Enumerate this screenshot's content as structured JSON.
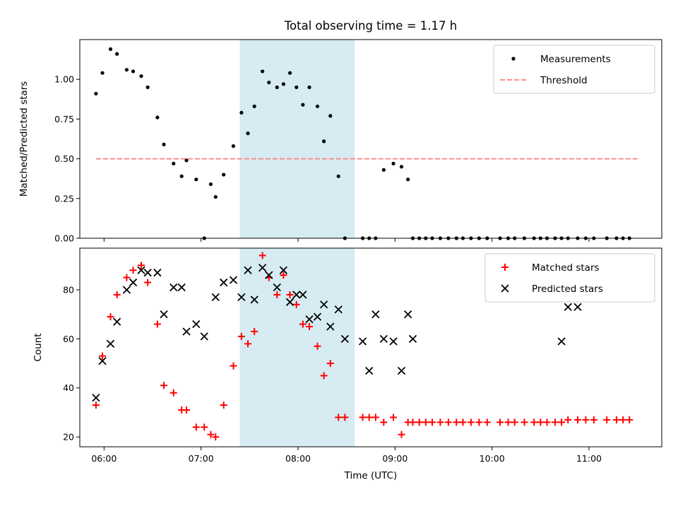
{
  "title": "Total observing time = 1.17 h",
  "colors": {
    "measurement": "#000000",
    "threshold": "#ff7f7f",
    "matched": "#ff0000",
    "predicted": "#000000",
    "shade": "#add8e6"
  },
  "chart_data": [
    {
      "type": "scatter",
      "ylabel": "Matched/Predicted stars",
      "xlabel": "",
      "xlim": [
        "05:45",
        "11:45"
      ],
      "ylim": [
        0,
        1.25
      ],
      "yticks": [
        "0.00",
        "0.25",
        "0.50",
        "0.75",
        "1.00"
      ],
      "shaded_region": [
        "07:24",
        "08:35"
      ],
      "legend": {
        "placement": "top-right",
        "entries": [
          "Measurements",
          "Threshold"
        ]
      },
      "threshold": {
        "name": "Threshold",
        "y": 0.5,
        "x": [
          "05:55",
          "11:30"
        ]
      },
      "series": [
        {
          "name": "Measurements",
          "x": [
            "05:55",
            "05:59",
            "06:04",
            "06:08",
            "06:14",
            "06:18",
            "06:23",
            "06:27",
            "06:33",
            "06:37",
            "06:43",
            "06:48",
            "06:51",
            "06:57",
            "07:02",
            "07:06",
            "07:09",
            "07:14",
            "07:20",
            "07:25",
            "07:29",
            "07:33",
            "07:38",
            "07:42",
            "07:47",
            "07:51",
            "07:55",
            "07:59",
            "08:03",
            "08:07",
            "08:12",
            "08:16",
            "08:20",
            "08:25",
            "08:29",
            "08:40",
            "08:44",
            "08:48",
            "08:53",
            "08:59",
            "09:04",
            "09:08",
            "09:11",
            "09:15",
            "09:19",
            "09:23",
            "09:28",
            "09:33",
            "09:38",
            "09:42",
            "09:47",
            "09:52",
            "09:57",
            "10:05",
            "10:10",
            "10:14",
            "10:20",
            "10:26",
            "10:30",
            "10:34",
            "10:39",
            "10:43",
            "10:47",
            "10:53",
            "10:58",
            "11:03",
            "11:11",
            "11:17",
            "11:21",
            "11:25"
          ],
          "y": [
            0.91,
            1.04,
            1.19,
            1.16,
            1.06,
            1.05,
            1.02,
            0.95,
            0.76,
            0.59,
            0.47,
            0.39,
            0.49,
            0.37,
            0.0,
            0.34,
            0.26,
            0.4,
            0.58,
            0.79,
            0.66,
            0.83,
            1.05,
            0.98,
            0.95,
            0.97,
            1.04,
            0.95,
            0.84,
            0.95,
            0.83,
            0.61,
            0.77,
            0.39,
            0.0,
            0.0,
            0.0,
            0.0,
            0.43,
            0.47,
            0.45,
            0.37,
            0.0,
            0.0,
            0.0,
            0.0,
            0.0,
            0.0,
            0.0,
            0.0,
            0.0,
            0.0,
            0.0,
            0.0,
            0.0,
            0.0,
            0.0,
            0.0,
            0.0,
            0.0,
            0.0,
            0.0,
            0.0,
            0.0,
            0.0,
            0.0,
            0.0,
            0.0,
            0.0,
            0.0
          ]
        }
      ]
    },
    {
      "type": "scatter",
      "ylabel": "Count",
      "xlabel": "Time (UTC)",
      "xlim": [
        "05:45",
        "11:45"
      ],
      "xticks": [
        "06:00",
        "07:00",
        "08:00",
        "09:00",
        "10:00",
        "11:00"
      ],
      "ylim": [
        16,
        97
      ],
      "yticks": [
        "20",
        "40",
        "60",
        "80"
      ],
      "shaded_region": [
        "07:24",
        "08:35"
      ],
      "legend": {
        "placement": "top-right",
        "entries": [
          "Matched stars",
          "Predicted stars"
        ]
      },
      "series": [
        {
          "name": "Matched stars",
          "x": [
            "05:55",
            "05:59",
            "06:04",
            "06:08",
            "06:14",
            "06:18",
            "06:23",
            "06:27",
            "06:33",
            "06:37",
            "06:43",
            "06:48",
            "06:51",
            "06:57",
            "07:02",
            "07:06",
            "07:09",
            "07:14",
            "07:20",
            "07:25",
            "07:29",
            "07:33",
            "07:38",
            "07:42",
            "07:47",
            "07:51",
            "07:55",
            "07:59",
            "08:03",
            "08:07",
            "08:12",
            "08:16",
            "08:20",
            "08:25",
            "08:29",
            "08:40",
            "08:44",
            "08:48",
            "08:53",
            "08:59",
            "09:04",
            "09:08",
            "09:11",
            "09:15",
            "09:19",
            "09:23",
            "09:28",
            "09:33",
            "09:38",
            "09:42",
            "09:47",
            "09:52",
            "09:57",
            "10:05",
            "10:10",
            "10:14",
            "10:20",
            "10:26",
            "10:30",
            "10:34",
            "10:39",
            "10:43",
            "10:47",
            "10:53",
            "10:58",
            "11:03",
            "11:11",
            "11:17",
            "11:21",
            "11:25"
          ],
          "y": [
            33,
            53,
            69,
            78,
            85,
            88,
            90,
            83,
            66,
            41,
            38,
            31,
            31,
            24,
            24,
            21,
            20,
            33,
            49,
            61,
            58,
            63,
            94,
            85,
            78,
            86,
            78,
            74,
            66,
            65,
            57,
            45,
            50,
            28,
            28,
            28,
            28,
            28,
            26,
            28,
            21,
            26,
            26,
            26,
            26,
            26,
            26,
            26,
            26,
            26,
            26,
            26,
            26,
            26,
            26,
            26,
            26,
            26,
            26,
            26,
            26,
            26,
            27,
            27,
            27,
            27,
            27,
            27,
            27,
            27
          ]
        },
        {
          "name": "Predicted stars",
          "x": [
            "05:55",
            "05:59",
            "06:04",
            "06:08",
            "06:14",
            "06:18",
            "06:23",
            "06:27",
            "06:33",
            "06:37",
            "06:43",
            "06:48",
            "06:51",
            "06:57",
            "07:02",
            "07:09",
            "07:14",
            "07:20",
            "07:25",
            "07:29",
            "07:33",
            "07:38",
            "07:42",
            "07:47",
            "07:51",
            "07:55",
            "07:59",
            "08:03",
            "08:07",
            "08:12",
            "08:16",
            "08:20",
            "08:25",
            "08:29",
            "08:40",
            "08:44",
            "08:48",
            "08:53",
            "08:59",
            "09:04",
            "09:08",
            "09:11",
            "10:43",
            "10:47",
            "10:53"
          ],
          "y": [
            36,
            51,
            58,
            67,
            80,
            83,
            88,
            87,
            87,
            70,
            81,
            81,
            63,
            66,
            61,
            77,
            83,
            84,
            77,
            88,
            76,
            89,
            86,
            81,
            88,
            75,
            78,
            78,
            68,
            69,
            74,
            65,
            72,
            60,
            59,
            47,
            70,
            60,
            59,
            47,
            70,
            60,
            59,
            73,
            73
          ]
        }
      ]
    }
  ]
}
